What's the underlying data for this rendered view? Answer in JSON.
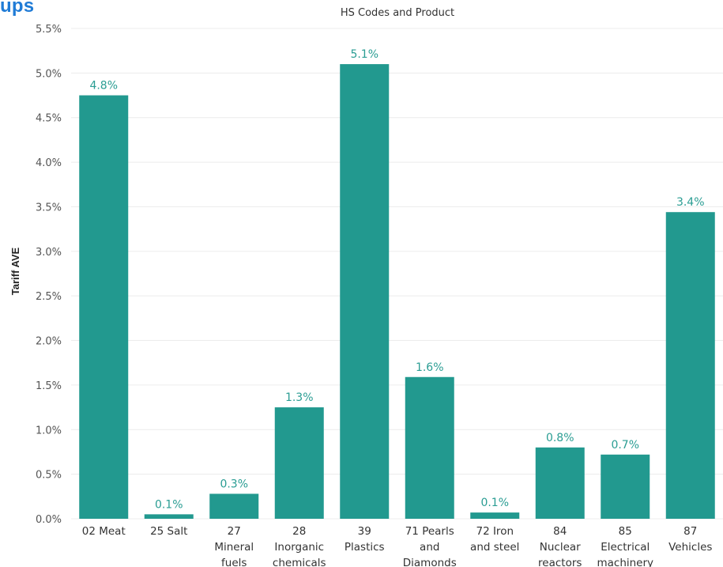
{
  "header": {
    "title_fragment": "ups"
  },
  "chart_data": {
    "type": "bar",
    "title": "HS Codes and Product",
    "xlabel": "",
    "ylabel": "Tariff AVE",
    "ylim": [
      0,
      5.5
    ],
    "yticks": [
      0.0,
      0.5,
      1.0,
      1.5,
      2.0,
      2.5,
      3.0,
      3.5,
      4.0,
      4.5,
      5.0,
      5.5
    ],
    "ytick_labels": [
      "0.0%",
      "0.5%",
      "1.0%",
      "1.5%",
      "2.0%",
      "2.5%",
      "3.0%",
      "3.5%",
      "4.0%",
      "4.5%",
      "5.0%",
      "5.5%"
    ],
    "categories": [
      [
        "02 Meat"
      ],
      [
        "25 Salt"
      ],
      [
        "27",
        "Mineral",
        "fuels"
      ],
      [
        "28",
        "Inorganic",
        "chemicals"
      ],
      [
        "39",
        "Plastics"
      ],
      [
        "71 Pearls",
        "and",
        "Diamonds"
      ],
      [
        "72 Iron",
        "and steel"
      ],
      [
        "84",
        "Nuclear",
        "reactors"
      ],
      [
        "85",
        "Electrical",
        "machinery"
      ],
      [
        "87",
        "Vehicles"
      ]
    ],
    "values": [
      4.75,
      0.05,
      0.28,
      1.25,
      5.1,
      1.59,
      0.07,
      0.8,
      0.72,
      3.44
    ],
    "data_labels": [
      "4.8%",
      "0.1%",
      "0.3%",
      "1.3%",
      "5.1%",
      "1.6%",
      "0.1%",
      "0.8%",
      "0.7%",
      "3.4%"
    ],
    "grid": true,
    "legend": "none",
    "bar_color": "#22998f",
    "label_color": "#2a9d93"
  }
}
